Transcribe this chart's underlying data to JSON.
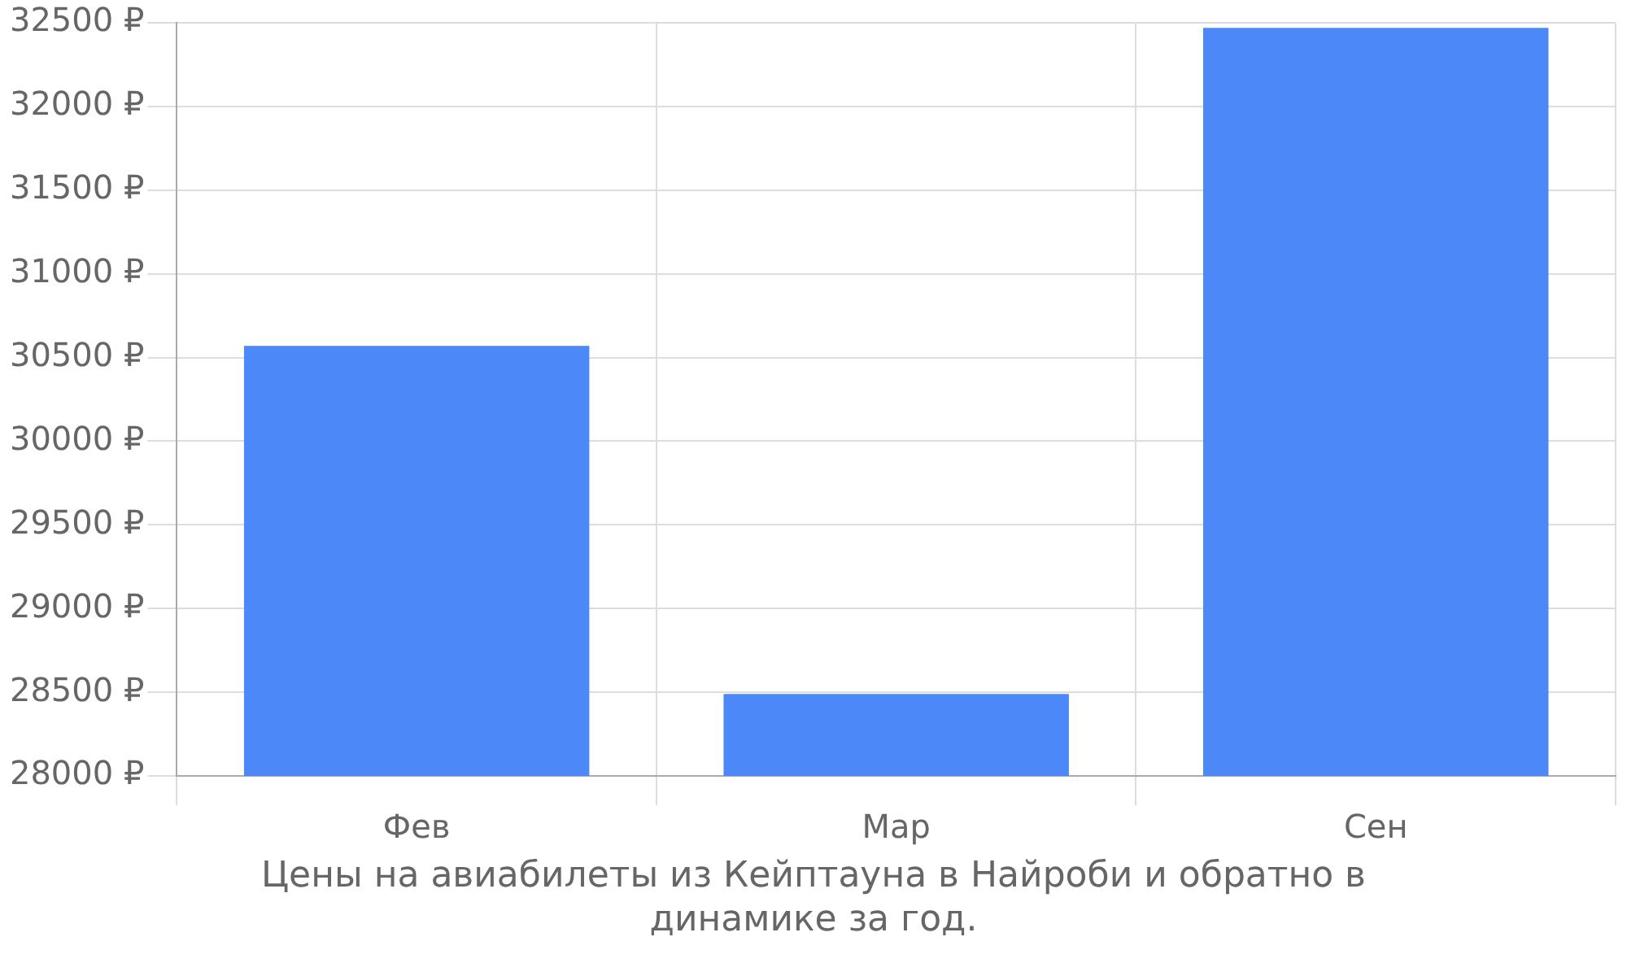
{
  "chart_data": {
    "type": "bar",
    "xlabel": "Цены на авиабилеты из Кейптауна в Найроби и обратно в динамике за год.",
    "categories": [
      "Фев",
      "Мар",
      "Сен"
    ],
    "values": [
      30570,
      28490,
      32470
    ],
    "color": "#4d88f9",
    "ylim": [
      28000,
      32500
    ],
    "yticks": [
      {
        "value": 28000,
        "label": "28000 ₽"
      },
      {
        "value": 28500,
        "label": "28500 ₽"
      },
      {
        "value": 29000,
        "label": "29000 ₽"
      },
      {
        "value": 29500,
        "label": "29500 ₽"
      },
      {
        "value": 30000,
        "label": "30000 ₽"
      },
      {
        "value": 30500,
        "label": "30500 ₽"
      },
      {
        "value": 31000,
        "label": "31000 ₽"
      },
      {
        "value": 31500,
        "label": "31500 ₽"
      },
      {
        "value": 32000,
        "label": "32000 ₽"
      },
      {
        "value": 32500,
        "label": "32500 ₽"
      }
    ],
    "grid": true,
    "legend": false
  }
}
